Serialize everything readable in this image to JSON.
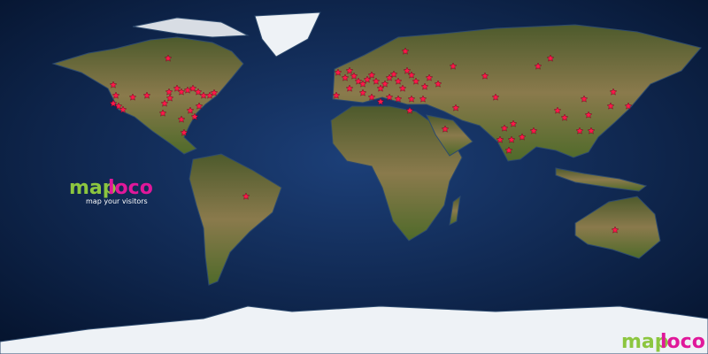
{
  "logo": {
    "map": "map",
    "loco": "loco",
    "tagline": "map your visitors"
  },
  "corner_logo": {
    "map": "map",
    "loco": "loco"
  },
  "marker_color": "#ff1a4a",
  "visitors": [
    {
      "lon": -122.4,
      "lat": 46.8
    },
    {
      "lon": -121.05,
      "lat": 41.4
    },
    {
      "lon": -122.4,
      "lat": 37.35
    },
    {
      "lon": -119.7,
      "lat": 36
    },
    {
      "lon": -117.45,
      "lat": 34.2
    },
    {
      "lon": -112.5,
      "lat": 40.5
    },
    {
      "lon": -105.3,
      "lat": 41.4
    },
    {
      "lon": -94.5,
      "lat": 60.3
    },
    {
      "lon": -96.3,
      "lat": 37.35
    },
    {
      "lon": -93.6,
      "lat": 40.05
    },
    {
      "lon": -94.05,
      "lat": 43.2
    },
    {
      "lon": -90,
      "lat": 45
    },
    {
      "lon": -87.75,
      "lat": 43.2
    },
    {
      "lon": -84.6,
      "lat": 44.1
    },
    {
      "lon": -81.9,
      "lat": 45
    },
    {
      "lon": -79.2,
      "lat": 43.2
    },
    {
      "lon": -76.5,
      "lat": 41.4
    },
    {
      "lon": -73.35,
      "lat": 41.4
    },
    {
      "lon": -71.1,
      "lat": 42.75
    },
    {
      "lon": -78.75,
      "lat": 36
    },
    {
      "lon": -83.25,
      "lat": 33.75
    },
    {
      "lon": -87.75,
      "lat": 29.25
    },
    {
      "lon": -86.4,
      "lat": 22.5
    },
    {
      "lon": -81,
      "lat": 30.6
    },
    {
      "lon": -97.2,
      "lat": 32.4
    },
    {
      "lon": -54.9,
      "lat": -9.9
    },
    {
      "lon": -8.1,
      "lat": 53.1
    },
    {
      "lon": -4.5,
      "lat": 50.4
    },
    {
      "lon": -2.25,
      "lat": 54
    },
    {
      "lon": 0,
      "lat": 51.3
    },
    {
      "lon": 2.25,
      "lat": 48.6
    },
    {
      "lon": 4.5,
      "lat": 47.25
    },
    {
      "lon": 6.75,
      "lat": 49.5
    },
    {
      "lon": 9,
      "lat": 51.75
    },
    {
      "lon": 11.25,
      "lat": 48.6
    },
    {
      "lon": 13.5,
      "lat": 45
    },
    {
      "lon": 15.75,
      "lat": 47.25
    },
    {
      "lon": 18,
      "lat": 50.4
    },
    {
      "lon": 20.25,
      "lat": 52.2
    },
    {
      "lon": 22.5,
      "lat": 48.6
    },
    {
      "lon": 24.75,
      "lat": 45
    },
    {
      "lon": 27,
      "lat": 54
    },
    {
      "lon": 26.1,
      "lat": 63.9
    },
    {
      "lon": 29.25,
      "lat": 51.75
    },
    {
      "lon": 31.5,
      "lat": 48.6
    },
    {
      "lon": 36,
      "lat": 45.9
    },
    {
      "lon": 38.25,
      "lat": 50.4
    },
    {
      "lon": 4.5,
      "lat": 42.75
    },
    {
      "lon": -2.25,
      "lat": 45
    },
    {
      "lon": -9,
      "lat": 41.4
    },
    {
      "lon": 9,
      "lat": 40.5
    },
    {
      "lon": 13.5,
      "lat": 38.25
    },
    {
      "lon": 18,
      "lat": 40.5
    },
    {
      "lon": 22.5,
      "lat": 39.6
    },
    {
      "lon": 29.25,
      "lat": 39.6
    },
    {
      "lon": 35.1,
      "lat": 39.6
    },
    {
      "lon": 42.75,
      "lat": 47.25
    },
    {
      "lon": 50.4,
      "lat": 56.25
    },
    {
      "lon": 51.75,
      "lat": 35.1
    },
    {
      "lon": 46.35,
      "lat": 24.3
    },
    {
      "lon": 28.35,
      "lat": 33.75
    },
    {
      "lon": 66.6,
      "lat": 51.3
    },
    {
      "lon": 93.6,
      "lat": 56.25
    },
    {
      "lon": 99.9,
      "lat": 60.3
    },
    {
      "lon": 103.5,
      "lat": 33.75
    },
    {
      "lon": 107.1,
      "lat": 30.15
    },
    {
      "lon": 117,
      "lat": 39.6
    },
    {
      "lon": 119.25,
      "lat": 31.5
    },
    {
      "lon": 114.75,
      "lat": 23.4
    },
    {
      "lon": 120.6,
      "lat": 23.4
    },
    {
      "lon": 130.5,
      "lat": 36
    },
    {
      "lon": 131.85,
      "lat": 43.2
    },
    {
      "lon": 139.5,
      "lat": 36
    },
    {
      "lon": 91.35,
      "lat": 23.4
    },
    {
      "lon": 81,
      "lat": 27
    },
    {
      "lon": 76.5,
      "lat": 24.75
    },
    {
      "lon": 74.25,
      "lat": 18.9
    },
    {
      "lon": 78.75,
      "lat": 13.5
    },
    {
      "lon": 80.1,
      "lat": 18.9
    },
    {
      "lon": 85.5,
      "lat": 20.25
    },
    {
      "lon": 72,
      "lat": 40.5
    },
    {
      "lon": 132.75,
      "lat": -27
    }
  ]
}
